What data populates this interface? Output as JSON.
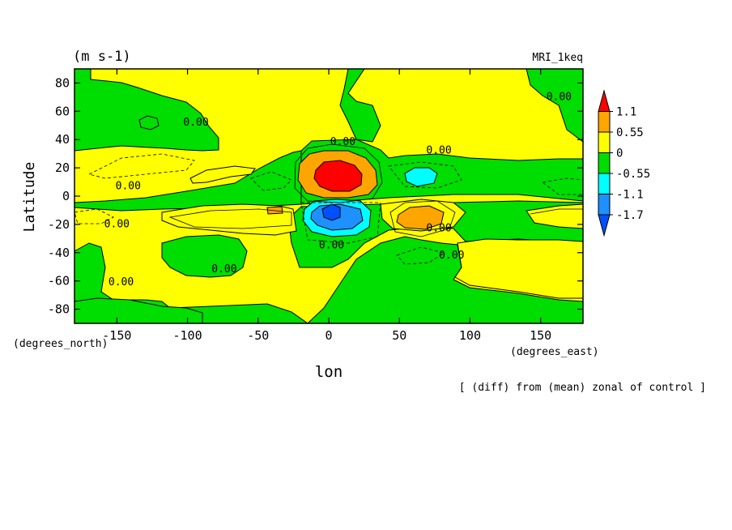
{
  "chart_data": {
    "type": "heatmap",
    "units_label": "(m s-1)",
    "model_label": "MRI_1keq",
    "xlabel": "lon",
    "ylabel": "Latitude",
    "x_units": "(degrees_east)",
    "y_units": "(degrees_north)",
    "caption": "[ (diff) from (mean) zonal of control ]",
    "xlim": [
      -180,
      180
    ],
    "ylim": [
      -90,
      90
    ],
    "x_ticks": [
      -150,
      -100,
      -50,
      0,
      50,
      100,
      150
    ],
    "y_ticks": [
      80,
      60,
      40,
      20,
      0,
      -20,
      -40,
      -60,
      -80
    ],
    "colorbar": {
      "levels": [
        "1.1",
        "0.55",
        "0",
        "-0.55",
        "-1.1",
        "-1.7"
      ],
      "colors": [
        "#ff0000",
        "#ffa500",
        "#ffff00",
        "#00dd00",
        "#00ffff",
        "#1e90ff",
        "#0050ff"
      ]
    },
    "contour_labels": [
      {
        "text": "0.00",
        "lon": 10,
        "lat": 36
      },
      {
        "text": "0.00",
        "lon": 78,
        "lat": 30
      },
      {
        "text": "0.00",
        "lon": 163,
        "lat": 68
      },
      {
        "text": "0.00",
        "lon": -94,
        "lat": 50
      },
      {
        "text": "0.00",
        "lon": -142,
        "lat": 5
      },
      {
        "text": "0.00",
        "lon": -150,
        "lat": -22
      },
      {
        "text": "0.00",
        "lon": 2,
        "lat": -37
      },
      {
        "text": "0.00",
        "lon": 78,
        "lat": -25
      },
      {
        "text": "0.00",
        "lon": 87,
        "lat": -44
      },
      {
        "text": "0.00",
        "lon": -74,
        "lat": -54
      },
      {
        "text": "0.00",
        "lon": -147,
        "lat": -63
      }
    ],
    "field_regions": [
      {
        "level": "0.55 to 1.1",
        "lon": [
          -20,
          30
        ],
        "lat": [
          3,
          27
        ]
      },
      {
        "level": "> 1.1",
        "lon": [
          -8,
          24
        ],
        "lat": [
          5,
          22
        ]
      },
      {
        "level": "-1.1 to -0.55",
        "lon": [
          -20,
          25
        ],
        "lat": [
          -27,
          -4
        ]
      },
      {
        "level": "< -1.1",
        "lon": [
          -8,
          8
        ],
        "lat": [
          -18,
          -6
        ]
      },
      {
        "level": "0.55 to 1.1",
        "lon": [
          48,
          80
        ],
        "lat": [
          -21,
          -9
        ]
      },
      {
        "level": "-1.1 to -0.55",
        "lon": [
          50,
          72
        ],
        "lat": [
          8,
          17
        ]
      }
    ]
  }
}
